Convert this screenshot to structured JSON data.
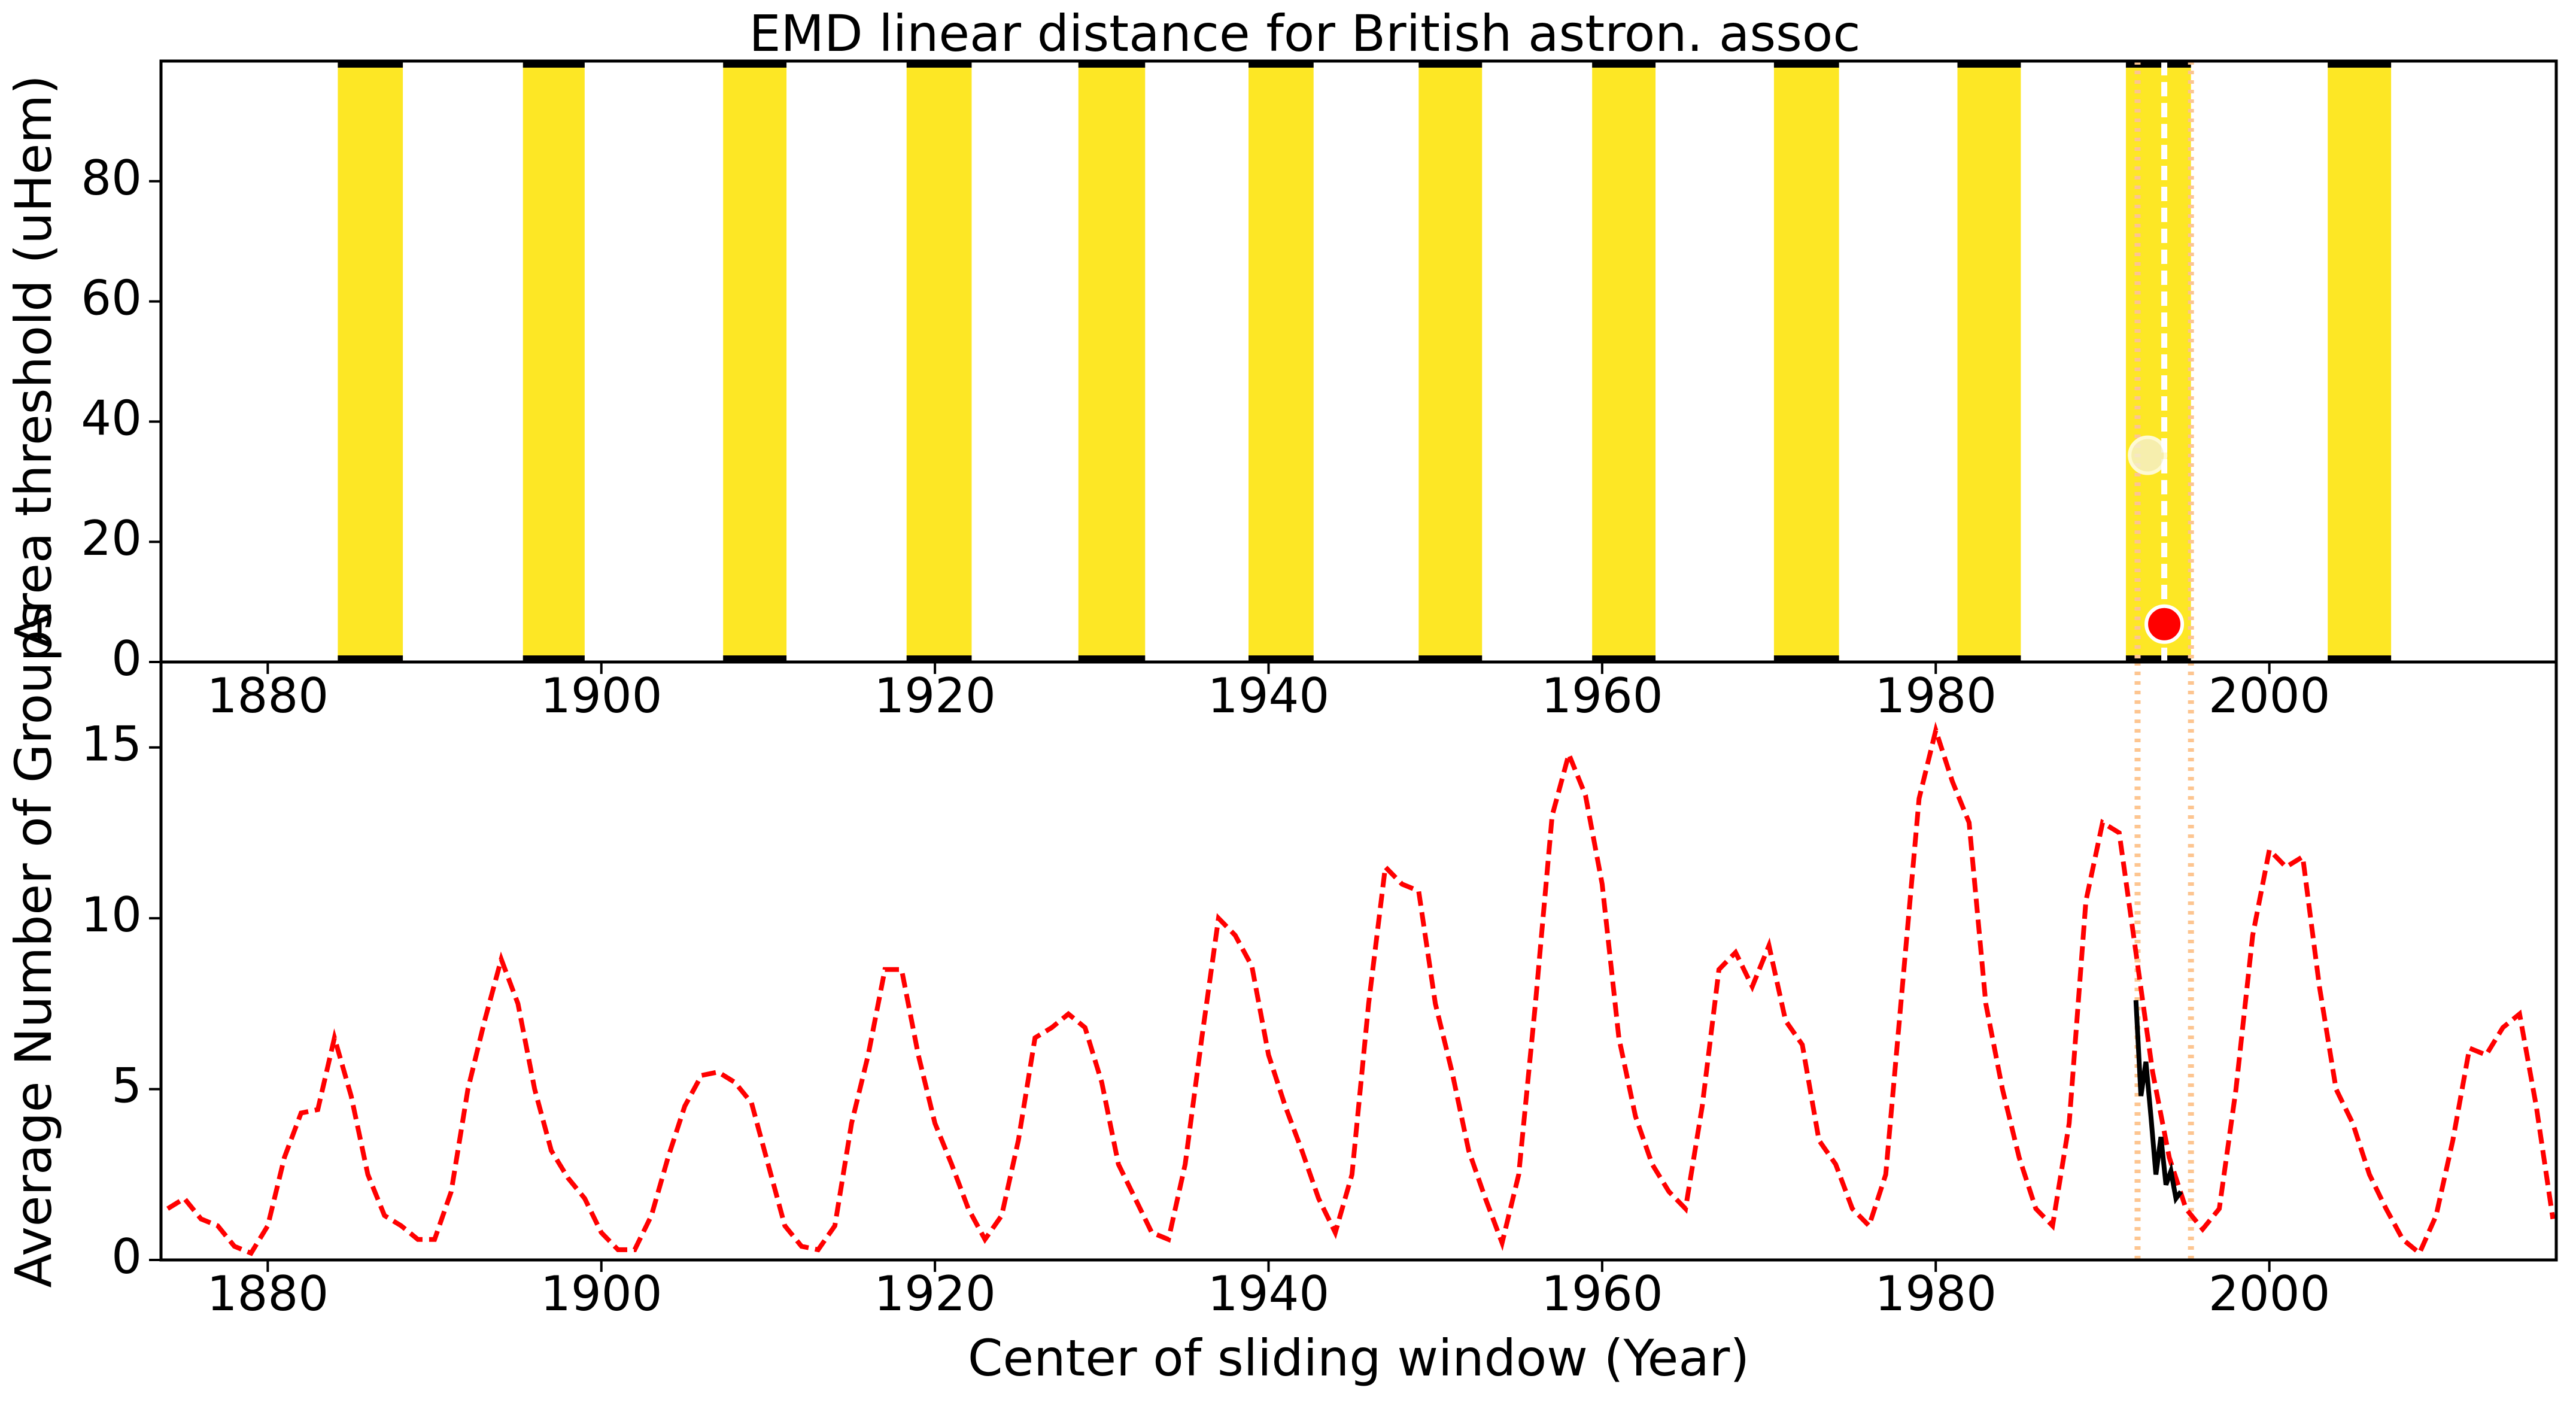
{
  "chart_data": [
    {
      "type": "span",
      "title": "EMD linear distance for British astron. assoc",
      "ylabel": "Area threshold (uHem)",
      "xlim": [
        1873.6,
        2017.2
      ],
      "ylim": [
        0,
        100
      ],
      "xticks": [
        1880,
        1900,
        1920,
        1940,
        1960,
        1980,
        2000
      ],
      "yticks": [
        0,
        20,
        40,
        60,
        80
      ],
      "color": "#fde725",
      "bands": [
        [
          1884.2,
          1888.1
        ],
        [
          1895.3,
          1899.0
        ],
        [
          1907.3,
          1911.1
        ],
        [
          1918.3,
          1922.2
        ],
        [
          1928.6,
          1932.6
        ],
        [
          1938.8,
          1942.7
        ],
        [
          1949.0,
          1952.8
        ],
        [
          1959.4,
          1963.2
        ],
        [
          1970.3,
          1974.2
        ],
        [
          1981.3,
          1985.1
        ],
        [
          1991.4,
          1995.3
        ],
        [
          2003.5,
          2007.3
        ]
      ],
      "vlines": [
        {
          "x": 1992.1,
          "color": "#fdc590",
          "style": "dotted"
        },
        {
          "x": 1995.3,
          "color": "#fdc590",
          "style": "dotted"
        },
        {
          "x": 1993.7,
          "color": "#ffffff",
          "style": "dashed"
        }
      ],
      "points": [
        {
          "x": 1992.7,
          "y": 34.4,
          "color": "#f5f0d0"
        },
        {
          "x": 1993.7,
          "y": 6.3,
          "color": "#ff0000"
        }
      ]
    },
    {
      "type": "line",
      "xlabel": "Center of sliding window (Year)",
      "ylabel": "Average Number of Groups",
      "xlim": [
        1873.6,
        2017.2
      ],
      "ylim": [
        0,
        17.5
      ],
      "xticks": [
        1880,
        1900,
        1920,
        1940,
        1960,
        1980,
        2000
      ],
      "yticks": [
        0,
        5,
        10,
        15
      ],
      "vlines": [
        {
          "x": 1992.1,
          "color": "#fdc590",
          "style": "dotted"
        },
        {
          "x": 1995.3,
          "color": "#fdc590",
          "style": "dotted"
        }
      ],
      "series": [
        {
          "color": "#ff0000",
          "style": "dashed",
          "x": [
            1874,
            1875,
            1876,
            1877,
            1878,
            1879,
            1880,
            1881,
            1882,
            1883,
            1884,
            1885,
            1886,
            1887,
            1888,
            1889,
            1890,
            1891,
            1892,
            1893,
            1894,
            1895,
            1896,
            1897,
            1898,
            1899,
            1900,
            1901,
            1902,
            1903,
            1904,
            1905,
            1906,
            1907,
            1908,
            1909,
            1910,
            1911,
            1912,
            1913,
            1914,
            1915,
            1916,
            1917,
            1918,
            1919,
            1920,
            1921,
            1922,
            1923,
            1924,
            1925,
            1926,
            1927,
            1928,
            1929,
            1930,
            1931,
            1932,
            1933,
            1934,
            1935,
            1936,
            1937,
            1938,
            1939,
            1940,
            1941,
            1942,
            1943,
            1944,
            1945,
            1946,
            1947,
            1948,
            1949,
            1950,
            1951,
            1952,
            1953,
            1954,
            1955,
            1956,
            1957,
            1958,
            1959,
            1960,
            1961,
            1962,
            1963,
            1964,
            1965,
            1966,
            1967,
            1968,
            1969,
            1970,
            1971,
            1972,
            1973,
            1974,
            1975,
            1976,
            1977,
            1978,
            1979,
            1980,
            1981,
            1982,
            1983,
            1984,
            1985,
            1986,
            1987,
            1988,
            1989,
            1990,
            1991,
            1992,
            1993,
            1994,
            1995,
            1996,
            1997,
            1998,
            1999,
            2000,
            2001,
            2002,
            2003,
            2004,
            2005,
            2006,
            2007,
            2008,
            2009,
            2010,
            2011,
            2012,
            2013,
            2014,
            2015,
            2016,
            2017
          ],
          "values": [
            1.5,
            1.8,
            1.2,
            1.0,
            0.4,
            0.2,
            1.0,
            3.0,
            4.3,
            4.4,
            6.5,
            4.8,
            2.5,
            1.3,
            1.0,
            0.6,
            0.6,
            2.0,
            5.0,
            7.0,
            8.8,
            7.5,
            5.0,
            3.2,
            2.4,
            1.8,
            0.8,
            0.3,
            0.3,
            1.3,
            3.0,
            4.5,
            5.4,
            5.5,
            5.2,
            4.6,
            2.8,
            1.0,
            0.4,
            0.3,
            1.0,
            4.0,
            6.0,
            8.5,
            8.5,
            6.0,
            4.0,
            2.8,
            1.5,
            0.6,
            1.3,
            3.5,
            6.5,
            6.8,
            7.2,
            6.8,
            5.2,
            2.8,
            1.8,
            0.8,
            0.6,
            2.8,
            6.5,
            10.0,
            9.5,
            8.6,
            6.0,
            4.5,
            3.2,
            1.8,
            0.8,
            2.5,
            7.5,
            11.5,
            11.0,
            10.8,
            7.5,
            5.5,
            3.2,
            1.8,
            0.5,
            2.5,
            7.5,
            13.0,
            14.8,
            13.6,
            11.0,
            6.5,
            4.2,
            2.8,
            2.0,
            1.5,
            4.5,
            8.5,
            9.0,
            8.0,
            9.2,
            7.0,
            6.3,
            3.5,
            2.8,
            1.5,
            1.0,
            2.5,
            8.0,
            13.5,
            15.5,
            14.0,
            12.8,
            7.5,
            5.0,
            3.0,
            1.5,
            1.0,
            4.0,
            10.5,
            12.8,
            12.5,
            9.0,
            5.5,
            3.0,
            1.5,
            0.9,
            1.5,
            5.0,
            9.5,
            12.0,
            11.5,
            11.8,
            8.0,
            5.0,
            4.0,
            2.5,
            1.5,
            0.6,
            0.2,
            1.3,
            3.5,
            6.2,
            6.0,
            6.8,
            7.2,
            4.5,
            1.2
          ]
        },
        {
          "color": "#000000",
          "style": "solid",
          "x": [
            1992.0,
            1992.3,
            1992.6,
            1992.9,
            1993.2,
            1993.5,
            1993.8,
            1994.1,
            1994.4,
            1994.7
          ],
          "values": [
            7.6,
            4.8,
            5.8,
            4.2,
            2.5,
            3.6,
            2.2,
            2.6,
            1.8,
            2.0
          ]
        }
      ]
    }
  ]
}
